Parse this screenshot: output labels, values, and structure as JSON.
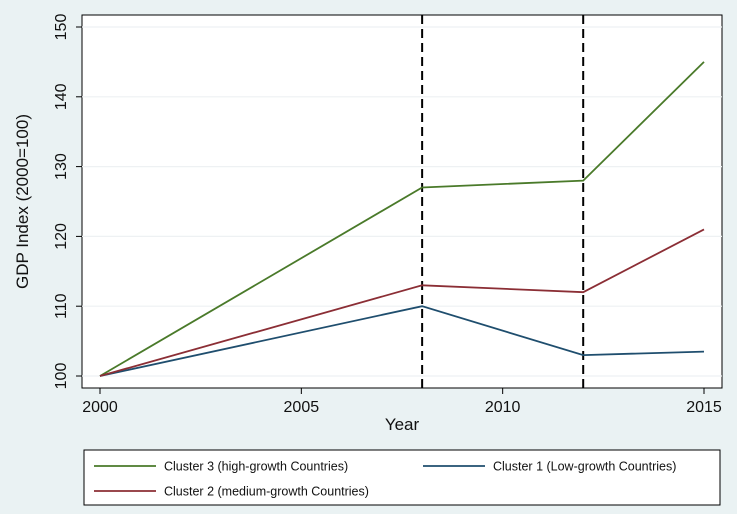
{
  "chart_data": {
    "type": "line",
    "title": "",
    "xlabel": "Year",
    "ylabel": "GDP Index (2000=100)",
    "xlim": [
      2000,
      2015
    ],
    "ylim": [
      100,
      150
    ],
    "x_ticks": [
      2000,
      2005,
      2010,
      2015
    ],
    "y_ticks": [
      100,
      110,
      120,
      130,
      140,
      150
    ],
    "grid": "horizontal",
    "x": [
      2000,
      2008,
      2012,
      2015
    ],
    "vertical_lines": [
      {
        "x": 2008,
        "style": "dashed",
        "color": "#000000"
      },
      {
        "x": 2012,
        "style": "dashed",
        "color": "#000000"
      }
    ],
    "legend_position": "bottom",
    "series": [
      {
        "name": "Cluster 3 (high-growth Countries)",
        "color": "#4a7a2a",
        "values": [
          100,
          127,
          128,
          145
        ]
      },
      {
        "name": "Cluster 1 (Low-growth Countries)",
        "color": "#1f4e6e",
        "values": [
          100,
          110,
          103,
          103.5
        ]
      },
      {
        "name": "Cluster 2 (medium-growth Countries)",
        "color": "#8b2e35",
        "values": [
          100,
          113,
          112,
          121
        ]
      }
    ]
  }
}
